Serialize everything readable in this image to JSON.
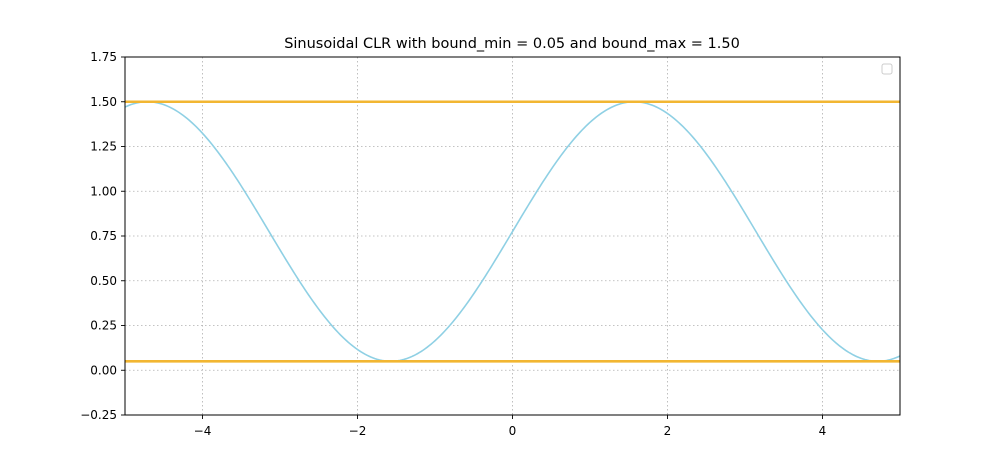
{
  "chart_data": {
    "type": "line",
    "title": "Sinusoidal CLR with bound_min = 0.05 and bound_max = 1.50",
    "xlabel": "",
    "ylabel": "",
    "xlim": [
      -5,
      5
    ],
    "ylim": [
      -0.25,
      1.75
    ],
    "x_ticks": [
      -4,
      -2,
      0,
      2,
      4
    ],
    "x_tick_labels": [
      "−4",
      "−2",
      "0",
      "2",
      "4"
    ],
    "y_ticks": [
      -0.25,
      0,
      0.25,
      0.5,
      0.75,
      1.0,
      1.25,
      1.5,
      1.75
    ],
    "y_tick_labels": [
      "−0.25",
      "0.00",
      "0.25",
      "0.50",
      "0.75",
      "1.00",
      "1.25",
      "1.50",
      "1.75"
    ],
    "grid": true,
    "legend": "top-right",
    "series": [
      {
        "kind": "curve",
        "color": "#8fd0e4",
        "formula": "0.775 + 0.725*sin(x)",
        "x": [
          -5.0,
          -4.5,
          -4.0,
          -3.5,
          -3.0,
          -2.5,
          -2.0,
          -1.5,
          -1.0,
          -0.5,
          0.0,
          0.5,
          1.0,
          1.5,
          2.0,
          2.5,
          3.0,
          3.5,
          4.0,
          4.5,
          5.0
        ],
        "values": [
          1.47,
          1.5,
          1.32,
          1.03,
          0.67,
          0.34,
          0.12,
          0.05,
          0.16,
          0.43,
          0.78,
          1.12,
          1.39,
          1.5,
          1.43,
          1.21,
          0.88,
          0.52,
          0.23,
          0.05,
          0.08
        ]
      },
      {
        "kind": "hline",
        "color": "#f2b632",
        "y": 1.5
      },
      {
        "kind": "hline",
        "color": "#f2b632",
        "y": 0.05
      }
    ]
  }
}
